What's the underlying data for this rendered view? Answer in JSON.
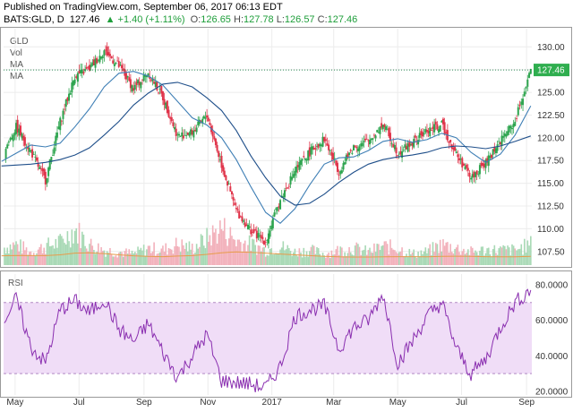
{
  "header": {
    "published": "Published on TradingView.com, September 06, 2017 06:13 EDT",
    "symbol": "BATS:GLD, D",
    "last": "127.46",
    "change_arrow": "▲",
    "change": "+1.40 (+1.11%)",
    "o_label": "O:",
    "o_value": "126.65",
    "h_label": "H:",
    "h_value": "127.78",
    "l_label": "L:",
    "l_value": "126.57",
    "c_label": "C:",
    "c_value": "127.46"
  },
  "legend": [
    "GLD",
    "Vol",
    "MA",
    "MA"
  ],
  "rsi_label": "RSI",
  "colors": {
    "up": "#2da44e",
    "down": "#e0344a",
    "ma_fast": "#3f7fb5",
    "ma_slow": "#1f4f8a",
    "volume_ma": "#e89b4a",
    "rsi": "#8a2fb0",
    "rsi_band": "#f0ddf7",
    "price_tag": "#2fae4f",
    "last_line": "#2e8b57"
  },
  "chart_data": [
    {
      "type": "candlestick",
      "title": "",
      "ylim": [
        106,
        132
      ],
      "yticks": [
        "130.00",
        "127.50",
        "125.00",
        "122.50",
        "120.00",
        "117.50",
        "115.00",
        "112.50",
        "110.00",
        "107.50"
      ],
      "last_price_tag": "127.46",
      "series": [
        {
          "name": "GLD",
          "kind": "candle",
          "x": [
            "2016-04-18",
            "2016-05-02",
            "2016-05-16",
            "2016-05-30",
            "2016-06-13",
            "2016-06-27",
            "2016-07-11",
            "2016-07-25",
            "2016-08-08",
            "2016-08-22",
            "2016-09-05",
            "2016-09-19",
            "2016-10-03",
            "2016-10-17",
            "2016-10-31",
            "2016-11-14",
            "2016-11-28",
            "2016-12-12",
            "2016-12-26",
            "2017-01-09",
            "2017-01-23",
            "2017-02-06",
            "2017-02-20",
            "2017-03-06",
            "2017-03-20",
            "2017-04-03",
            "2017-04-17",
            "2017-05-01",
            "2017-05-15",
            "2017-05-29",
            "2017-06-12",
            "2017-06-26",
            "2017-07-10",
            "2017-07-24",
            "2017-08-07",
            "2017-08-21",
            "2017-09-05"
          ],
          "close": [
            118.0,
            121.2,
            118.5,
            115.3,
            121.8,
            126.8,
            127.6,
            129.6,
            127.9,
            125.4,
            127.2,
            124.4,
            120.2,
            120.6,
            122.5,
            117.0,
            112.0,
            109.8,
            108.6,
            113.2,
            116.4,
            118.4,
            119.9,
            116.3,
            119.0,
            119.6,
            121.5,
            118.4,
            119.4,
            120.8,
            121.4,
            118.2,
            115.6,
            117.2,
            119.7,
            121.8,
            127.5
          ]
        },
        {
          "name": "MA",
          "kind": "line",
          "values": [
            117.4,
            118.3,
            119.2,
            119.0,
            119.4,
            121.2,
            123.2,
            125.6,
            127.1,
            127.3,
            126.8,
            125.8,
            124.0,
            122.2,
            121.4,
            120.0,
            117.6,
            114.6,
            111.8,
            110.6,
            112.2,
            114.8,
            117.1,
            117.8,
            117.9,
            118.6,
            119.6,
            119.9,
            119.5,
            119.8,
            120.5,
            120.0,
            118.4,
            117.3,
            118.2,
            120.3,
            123.5
          ]
        },
        {
          "name": "MA",
          "kind": "line",
          "values": [
            116.9,
            117.0,
            117.1,
            117.3,
            117.6,
            118.1,
            118.9,
            120.3,
            121.8,
            123.6,
            124.9,
            125.9,
            126.1,
            125.6,
            124.4,
            123.0,
            120.8,
            118.0,
            115.6,
            113.6,
            112.6,
            112.8,
            113.8,
            115.1,
            116.2,
            117.1,
            117.6,
            117.9,
            118.1,
            118.4,
            118.9,
            119.1,
            119.0,
            118.8,
            119.1,
            119.6,
            120.2
          ]
        }
      ]
    },
    {
      "type": "bar",
      "name": "Vol",
      "x": [
        "2016-04-18",
        "2016-05-02",
        "2016-05-16",
        "2016-05-30",
        "2016-06-13",
        "2016-06-27",
        "2016-07-11",
        "2016-07-25",
        "2016-08-08",
        "2016-08-22",
        "2016-09-05",
        "2016-09-19",
        "2016-10-03",
        "2016-10-17",
        "2016-10-31",
        "2016-11-14",
        "2016-11-28",
        "2016-12-12",
        "2016-12-26",
        "2017-01-09",
        "2017-01-23",
        "2017-02-06",
        "2017-02-20",
        "2017-03-06",
        "2017-03-20",
        "2017-04-03",
        "2017-04-17",
        "2017-05-01",
        "2017-05-15",
        "2017-05-29",
        "2017-06-12",
        "2017-06-26",
        "2017-07-10",
        "2017-07-24",
        "2017-08-07",
        "2017-08-21",
        "2017-09-05"
      ],
      "values": [
        0.45,
        0.55,
        0.35,
        0.5,
        0.6,
        0.95,
        0.55,
        0.4,
        0.35,
        0.3,
        0.45,
        0.4,
        0.55,
        0.45,
        0.7,
        1.0,
        0.65,
        0.55,
        0.4,
        0.5,
        0.35,
        0.4,
        0.3,
        0.4,
        0.45,
        0.35,
        0.5,
        0.45,
        0.3,
        0.35,
        0.55,
        0.45,
        0.35,
        0.4,
        0.4,
        0.4,
        0.55
      ],
      "ma": [
        0.45,
        0.47,
        0.46,
        0.46,
        0.5,
        0.58,
        0.6,
        0.56,
        0.5,
        0.45,
        0.42,
        0.41,
        0.44,
        0.46,
        0.52,
        0.6,
        0.64,
        0.62,
        0.58,
        0.54,
        0.5,
        0.46,
        0.42,
        0.4,
        0.39,
        0.39,
        0.4,
        0.41,
        0.41,
        0.4,
        0.42,
        0.43,
        0.42,
        0.41,
        0.4,
        0.4,
        0.42
      ]
    },
    {
      "type": "line",
      "name": "RSI",
      "ylim": [
        18,
        86
      ],
      "yticks": [
        "80.0000",
        "60.0000",
        "40.0000",
        "20.0000"
      ],
      "bands": [
        30,
        70
      ],
      "x": [
        "2016-04-18",
        "2016-05-02",
        "2016-05-16",
        "2016-05-30",
        "2016-06-13",
        "2016-06-27",
        "2016-07-11",
        "2016-07-25",
        "2016-08-08",
        "2016-08-22",
        "2016-09-05",
        "2016-09-19",
        "2016-10-03",
        "2016-10-17",
        "2016-10-31",
        "2016-11-14",
        "2016-11-28",
        "2016-12-12",
        "2016-12-26",
        "2017-01-09",
        "2017-01-23",
        "2017-02-06",
        "2017-02-20",
        "2017-03-06",
        "2017-03-20",
        "2017-04-03",
        "2017-04-17",
        "2017-05-01",
        "2017-05-15",
        "2017-05-29",
        "2017-06-12",
        "2017-06-26",
        "2017-07-10",
        "2017-07-24",
        "2017-08-07",
        "2017-08-21",
        "2017-09-05"
      ],
      "values": [
        58,
        72,
        45,
        36,
        66,
        71,
        64,
        72,
        55,
        48,
        58,
        42,
        28,
        40,
        52,
        26,
        25,
        24,
        22,
        34,
        62,
        66,
        68,
        44,
        56,
        60,
        75,
        36,
        48,
        62,
        70,
        44,
        30,
        38,
        56,
        70,
        77
      ]
    }
  ],
  "x_axis_labels": [
    {
      "label": "May",
      "date": "2016-05-01"
    },
    {
      "label": "Jul",
      "date": "2016-07-01"
    },
    {
      "label": "Sep",
      "date": "2016-09-01"
    },
    {
      "label": "Nov",
      "date": "2016-11-01"
    },
    {
      "label": "2017",
      "date": "2017-01-01"
    },
    {
      "label": "Mar",
      "date": "2017-03-01"
    },
    {
      "label": "May",
      "date": "2017-05-01"
    },
    {
      "label": "Jul",
      "date": "2017-07-01"
    },
    {
      "label": "Sep",
      "date": "2017-09-01"
    }
  ]
}
